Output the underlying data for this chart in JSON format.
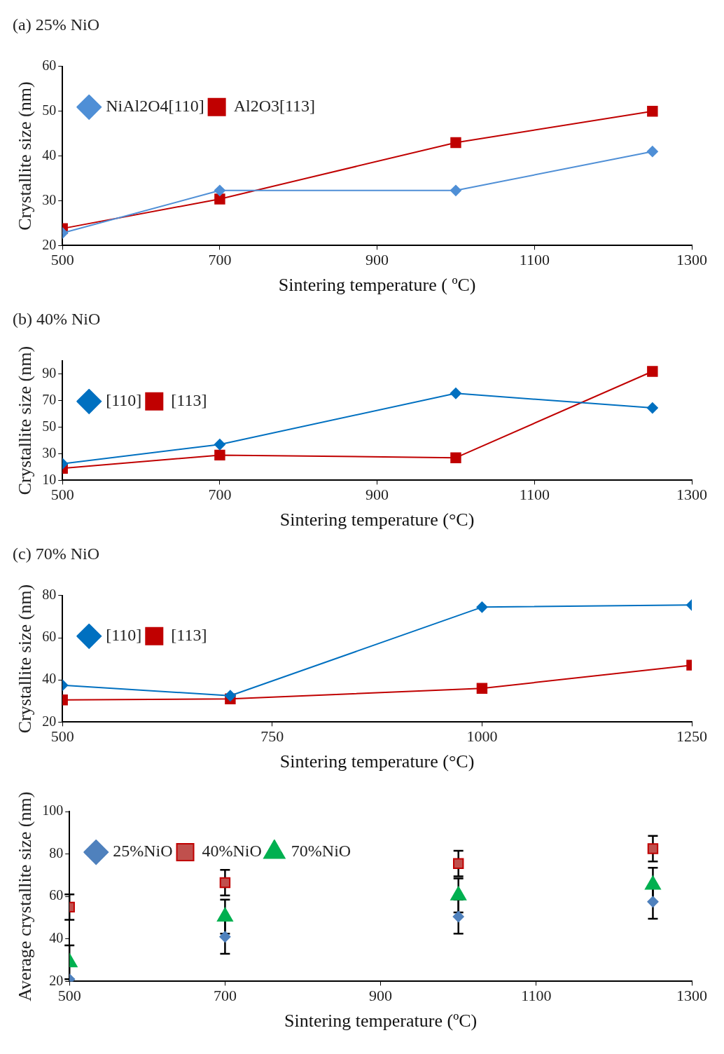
{
  "chart_data": [
    {
      "type": "line",
      "title": "(a) 25% NiO",
      "xlabel": "Sintering temperature ( ºC)",
      "ylabel": "Crystallite size (nm)",
      "x": [
        500,
        700,
        1000,
        1250
      ],
      "xlim": [
        500,
        1300
      ],
      "xticks": [
        500,
        700,
        900,
        1100,
        1300
      ],
      "ylim": [
        20,
        60
      ],
      "yticks": [
        20,
        30,
        40,
        50,
        60
      ],
      "grid": false,
      "legend": "top left",
      "series": [
        {
          "name": "NiAl2O4[110]",
          "color": "#4f8fd6",
          "marker": "diamond",
          "values": [
            22.8,
            32.3,
            32.3,
            41
          ]
        },
        {
          "name": "Al2O3[113]",
          "color": "#c00000",
          "marker": "square",
          "values": [
            23.8,
            30.4,
            43,
            50
          ]
        }
      ]
    },
    {
      "type": "line",
      "title": "(b) 40% NiO",
      "xlabel": "Sintering temperature (°C)",
      "ylabel": "Crystallite size (nm)",
      "x": [
        500,
        700,
        1000,
        1250
      ],
      "xlim": [
        500,
        1300
      ],
      "xticks": [
        500,
        700,
        900,
        1100,
        1300
      ],
      "ylim": [
        10,
        100
      ],
      "yticks": [
        10,
        30,
        50,
        70,
        90
      ],
      "grid": false,
      "legend": "top left",
      "series": [
        {
          "name": "[110]",
          "color": "#0070c0",
          "marker": "diamond",
          "values": [
            22.5,
            37,
            75.5,
            64.5
          ]
        },
        {
          "name": "[113]",
          "color": "#c00000",
          "marker": "square",
          "values": [
            19,
            29,
            27,
            92
          ]
        }
      ]
    },
    {
      "type": "line",
      "title": "(c) 70% NiO",
      "xlabel": "Sintering temperature (°C)",
      "ylabel": "Crystallite size (nm)",
      "x": [
        500,
        700,
        1000,
        1250
      ],
      "xlim": [
        500,
        1250
      ],
      "xticks": [
        500,
        750,
        1000,
        1250
      ],
      "ylim": [
        20,
        80
      ],
      "yticks": [
        20,
        40,
        60,
        80
      ],
      "grid": false,
      "legend": "top left",
      "series": [
        {
          "name": "[110]",
          "color": "#0070c0",
          "marker": "diamond",
          "values": [
            37.5,
            32.5,
            74.5,
            75.5
          ]
        },
        {
          "name": "[113]",
          "color": "#c00000",
          "marker": "square",
          "values": [
            30.5,
            31,
            36,
            47
          ]
        }
      ]
    },
    {
      "type": "scatter",
      "xlabel": "Sintering temperature (ºC)",
      "ylabel": "Average crystallite size (nm)",
      "x": [
        500,
        700,
        1000,
        1250
      ],
      "xlim": [
        500,
        1300
      ],
      "xticks": [
        500,
        700,
        900,
        1100,
        1300
      ],
      "ylim": [
        20,
        100
      ],
      "yticks": [
        20,
        40,
        60,
        80,
        100
      ],
      "grid": false,
      "legend": "top left",
      "series": [
        {
          "name": "25%NiO",
          "color": "#4f81bd",
          "marker": "diamond",
          "values": [
            21,
            41,
            50.5,
            57.5
          ],
          "errors": [
            null,
            8,
            8,
            8
          ]
        },
        {
          "name": "40%NiO",
          "color": "#c0504d",
          "marker": "square",
          "values": [
            55,
            66.5,
            75.5,
            82.5
          ],
          "errors": [
            6,
            6,
            6,
            6
          ]
        },
        {
          "name": "70%NiO",
          "color": "#00b050",
          "marker": "triangle",
          "values": [
            29,
            50.5,
            60.5,
            65.5
          ],
          "errors": [
            8,
            8,
            8,
            8
          ]
        }
      ]
    }
  ]
}
